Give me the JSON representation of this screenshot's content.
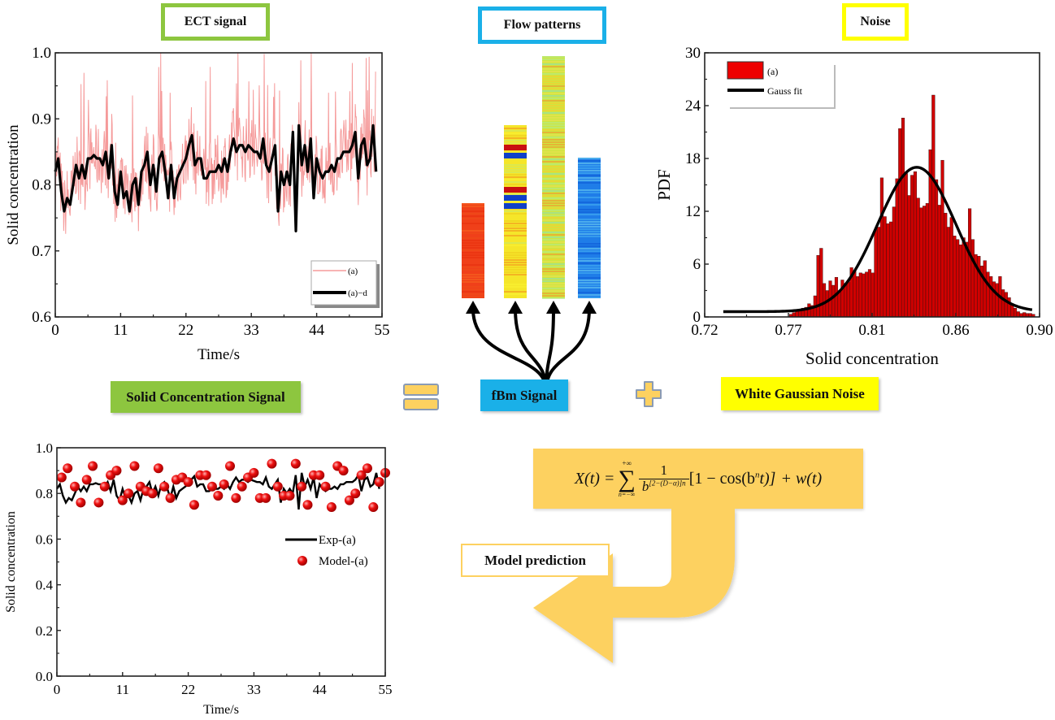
{
  "titles": {
    "ect": "ECT signal",
    "flow": "Flow patterns",
    "noise": "Noise"
  },
  "equation_row": {
    "left": "Solid Concentration Signal",
    "equals_icon": "equals-sign",
    "middle": "fBm Signal",
    "plus_icon": "plus-sign",
    "right": "White Gaussian Noise"
  },
  "equation": {
    "lhs": "X(t) =",
    "sum_top": "+∞",
    "sum_bottom": "n=−∞",
    "numerator": "1",
    "denominator_base": "b",
    "denominator_exp": "[2−(D−α)]n",
    "bracket_term": "[1 − cos(b",
    "bn_exp": "n",
    "bracket_end": "t)]",
    "tail": "+ w(t)"
  },
  "model_prediction_label": "Model prediction",
  "colors": {
    "green": "#8dc63f",
    "blue": "#1ab0e8",
    "yellow": "#ffff00",
    "gold": "#fdd160",
    "pink": "#f59a9a",
    "red": "#e00000"
  },
  "flow_patterns": [
    {
      "name": "dense-red",
      "base": "#f0401a"
    },
    {
      "name": "slug-yellow",
      "base": "#f5e62a"
    },
    {
      "name": "mixed-yellow-green",
      "base": "#cde640"
    },
    {
      "name": "dilute-blue",
      "base": "#1f7de8"
    }
  ],
  "chart_data": [
    {
      "id": "ect",
      "type": "line",
      "title": "ECT signal",
      "xlabel": "Time/s",
      "ylabel": "Solid concentration",
      "xlim": [
        0,
        55
      ],
      "ylim": [
        0.6,
        1.0
      ],
      "xticks": [
        "0",
        "11",
        "22",
        "33",
        "44",
        "55"
      ],
      "yticks": [
        "0.6",
        "0.7",
        "0.8",
        "0.9",
        "1.0"
      ],
      "legend": [
        "(a)",
        "(a)−d"
      ],
      "legend_position": "bottom-right",
      "series": [
        {
          "name": "(a)-d",
          "color": "#000000",
          "x": [
            0,
            0.5,
            1,
            1.5,
            2,
            2.5,
            3,
            3.5,
            4,
            4.5,
            5,
            5.5,
            6,
            6.5,
            7,
            7.5,
            8,
            8.5,
            9,
            9.5,
            10,
            10.5,
            11,
            11.5,
            12,
            12.5,
            13,
            13.5,
            14,
            14.5,
            15,
            15.5,
            16,
            16.5,
            17,
            17.5,
            18,
            18.5,
            19,
            19.5,
            20,
            20.5,
            21,
            21.5,
            22,
            22.5,
            23,
            23.5,
            24,
            24.5,
            25,
            25.5,
            26,
            26.5,
            27,
            27.5,
            28,
            28.5,
            29,
            29.5,
            30,
            30.5,
            31,
            31.5,
            32,
            32.5,
            33,
            33.5,
            34,
            34.5,
            35,
            35.5,
            36,
            36.5,
            37,
            37.5,
            38,
            38.5,
            39,
            39.5,
            40,
            40.5,
            41,
            41.5,
            42,
            42.5,
            43,
            43.5,
            44,
            44.5,
            45,
            45.5,
            46,
            46.5,
            47,
            47.5,
            48,
            48.5,
            49,
            49.5,
            50,
            50.5,
            51,
            51.5,
            52,
            52.5,
            53,
            53.5,
            54
          ],
          "y": [
            0.82,
            0.84,
            0.79,
            0.76,
            0.78,
            0.77,
            0.8,
            0.83,
            0.81,
            0.83,
            0.81,
            0.84,
            0.84,
            0.845,
            0.84,
            0.84,
            0.83,
            0.85,
            0.81,
            0.86,
            0.79,
            0.77,
            0.82,
            0.78,
            0.79,
            0.76,
            0.8,
            0.81,
            0.77,
            0.82,
            0.83,
            0.85,
            0.8,
            0.83,
            0.79,
            0.84,
            0.85,
            0.82,
            0.78,
            0.83,
            0.78,
            0.81,
            0.82,
            0.83,
            0.84,
            0.86,
            0.875,
            0.83,
            0.84,
            0.84,
            0.81,
            0.81,
            0.82,
            0.82,
            0.82,
            0.83,
            0.82,
            0.84,
            0.82,
            0.85,
            0.87,
            0.85,
            0.86,
            0.86,
            0.85,
            0.86,
            0.855,
            0.85,
            0.85,
            0.84,
            0.87,
            0.83,
            0.82,
            0.84,
            0.86,
            0.76,
            0.82,
            0.8,
            0.82,
            0.8,
            0.88,
            0.73,
            0.89,
            0.83,
            0.86,
            0.82,
            0.87,
            0.78,
            0.84,
            0.82,
            0.81,
            0.82,
            0.82,
            0.83,
            0.82,
            0.84,
            0.84,
            0.85,
            0.85,
            0.85,
            0.86,
            0.88,
            0.81,
            0.86,
            0.87,
            0.83,
            0.84,
            0.89,
            0.82
          ]
        },
        {
          "name": "(a)",
          "color": "#f59a9a",
          "note": "raw noisy signal fluctuating about the (a)-d curve, range ≈0.71–1.0"
        }
      ]
    },
    {
      "id": "noise",
      "type": "bar",
      "title": "Noise",
      "xlabel": "Solid concentration",
      "ylabel": "PDF",
      "xlim": [
        0.72,
        0.9
      ],
      "ylim": [
        0,
        30
      ],
      "xticks": [
        "0.72",
        "0.77",
        "0.81",
        "0.86",
        "0.90"
      ],
      "yticks": [
        "0",
        "6",
        "12",
        "18",
        "24",
        "30"
      ],
      "legend": [
        "(a)",
        "Gauss fit"
      ],
      "legend_position": "top-left",
      "series": [
        {
          "name": "(a)",
          "color": "#d00000",
          "bin_start": 0.766,
          "bin_width": 0.001,
          "values": [
            0.3,
            0.5,
            0.7,
            0.8,
            1.0,
            1.1,
            1.5,
            1.3,
            2.4,
            7.0,
            7.8,
            3.8,
            3.0,
            4.1,
            3.6,
            4.5,
            3.0,
            4.2,
            3.8,
            4.0,
            5.6,
            5.2,
            4.6,
            5.0,
            4.9,
            5.1,
            5.4,
            5.0,
            9.9,
            10.2,
            15.8,
            11.4,
            10.6,
            10.8,
            12.5,
            15.7,
            21.4,
            22.6,
            16.3,
            13.8,
            16.1,
            16.5,
            13.5,
            12.4,
            12.6,
            12.9,
            19.0,
            25.2,
            15.6,
            12.7,
            17.8,
            11.8,
            10.2,
            11.3,
            9.2,
            8.8,
            8.2,
            9.0,
            8.5,
            12.3,
            8.8,
            7.1,
            6.9,
            5.8,
            6.4,
            5.1,
            4.6,
            4.0,
            3.8,
            4.6,
            3.1,
            2.8,
            2.2,
            1.4,
            1.0,
            0.6,
            0.4,
            0.5,
            0.4,
            0.4,
            0.3
          ]
        },
        {
          "name": "Gauss fit",
          "type": "line",
          "color": "#000000",
          "baseline": 0.6,
          "mean": 0.834,
          "peak": 17.0,
          "sigma": 0.021,
          "x_range": [
            0.73,
            0.897
          ]
        }
      ]
    },
    {
      "id": "prediction",
      "type": "scatter",
      "xlabel": "Time/s",
      "ylabel": "Solid concentration",
      "xlim": [
        0,
        55
      ],
      "ylim": [
        0.0,
        1.0
      ],
      "xticks": [
        "0",
        "11",
        "22",
        "33",
        "44",
        "55"
      ],
      "yticks": [
        "0.0",
        "0.2",
        "0.4",
        "0.6",
        "0.8",
        "1.0"
      ],
      "legend": [
        "Exp-(a)",
        "Model-(a)"
      ],
      "legend_position": "center-right",
      "series": [
        {
          "name": "Exp-(a)",
          "type": "line",
          "color": "#000000",
          "same_as": "ect.(a)-d"
        },
        {
          "name": "Model-(a)",
          "type": "scatter",
          "color": "#e00000",
          "x": [
            0.8,
            1.8,
            3,
            4,
            5,
            6,
            7,
            8,
            9,
            10,
            11,
            12,
            13,
            14,
            15,
            16,
            17,
            18,
            19,
            20,
            21,
            22,
            23,
            24,
            25,
            26,
            27,
            28,
            29,
            30,
            31,
            32,
            33,
            34,
            35,
            36,
            37,
            38,
            39,
            40,
            41,
            42,
            43,
            44,
            45,
            46,
            47,
            48,
            49,
            50,
            51,
            52,
            53,
            54,
            55
          ],
          "y": [
            0.87,
            0.91,
            0.83,
            0.76,
            0.86,
            0.92,
            0.76,
            0.83,
            0.88,
            0.9,
            0.77,
            0.8,
            0.92,
            0.83,
            0.81,
            0.8,
            0.91,
            0.83,
            0.78,
            0.86,
            0.87,
            0.85,
            0.75,
            0.88,
            0.88,
            0.83,
            0.79,
            0.84,
            0.92,
            0.78,
            0.83,
            0.87,
            0.89,
            0.78,
            0.78,
            0.93,
            0.83,
            0.79,
            0.79,
            0.93,
            0.83,
            0.75,
            0.88,
            0.88,
            0.83,
            0.74,
            0.92,
            0.9,
            0.77,
            0.8,
            0.88,
            0.91,
            0.74,
            0.85,
            0.89
          ]
        }
      ]
    }
  ]
}
